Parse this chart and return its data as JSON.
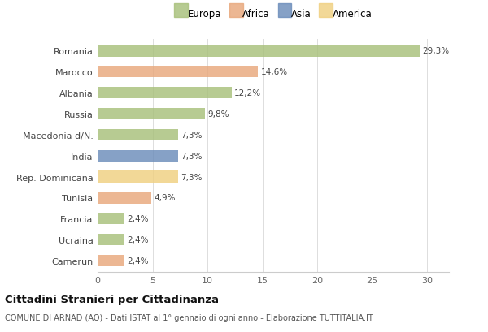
{
  "categories": [
    "Romania",
    "Marocco",
    "Albania",
    "Russia",
    "Macedonia d/N.",
    "India",
    "Rep. Dominicana",
    "Tunisia",
    "Francia",
    "Ucraina",
    "Camerun"
  ],
  "values": [
    29.3,
    14.6,
    12.2,
    9.8,
    7.3,
    7.3,
    7.3,
    4.9,
    2.4,
    2.4,
    2.4
  ],
  "labels": [
    "29,3%",
    "14,6%",
    "12,2%",
    "9,8%",
    "7,3%",
    "7,3%",
    "7,3%",
    "4,9%",
    "2,4%",
    "2,4%",
    "2,4%"
  ],
  "bar_colors": [
    "#a8c07a",
    "#e8a87c",
    "#a8c07a",
    "#a8c07a",
    "#a8c07a",
    "#6b8cba",
    "#f0d080",
    "#e8a87c",
    "#a8c07a",
    "#a8c07a",
    "#e8a87c"
  ],
  "legend_labels": [
    "Europa",
    "Africa",
    "Asia",
    "America"
  ],
  "legend_colors": [
    "#a8c07a",
    "#e8a87c",
    "#6b8cba",
    "#f0d080"
  ],
  "title": "Cittadini Stranieri per Cittadinanza",
  "subtitle": "COMUNE DI ARNAD (AO) - Dati ISTAT al 1° gennaio di ogni anno - Elaborazione TUTTITALIA.IT",
  "xlim": [
    0,
    32
  ],
  "xticks": [
    0,
    5,
    10,
    15,
    20,
    25,
    30
  ],
  "background_color": "#ffffff",
  "bar_alpha": 0.82,
  "bar_height": 0.55
}
